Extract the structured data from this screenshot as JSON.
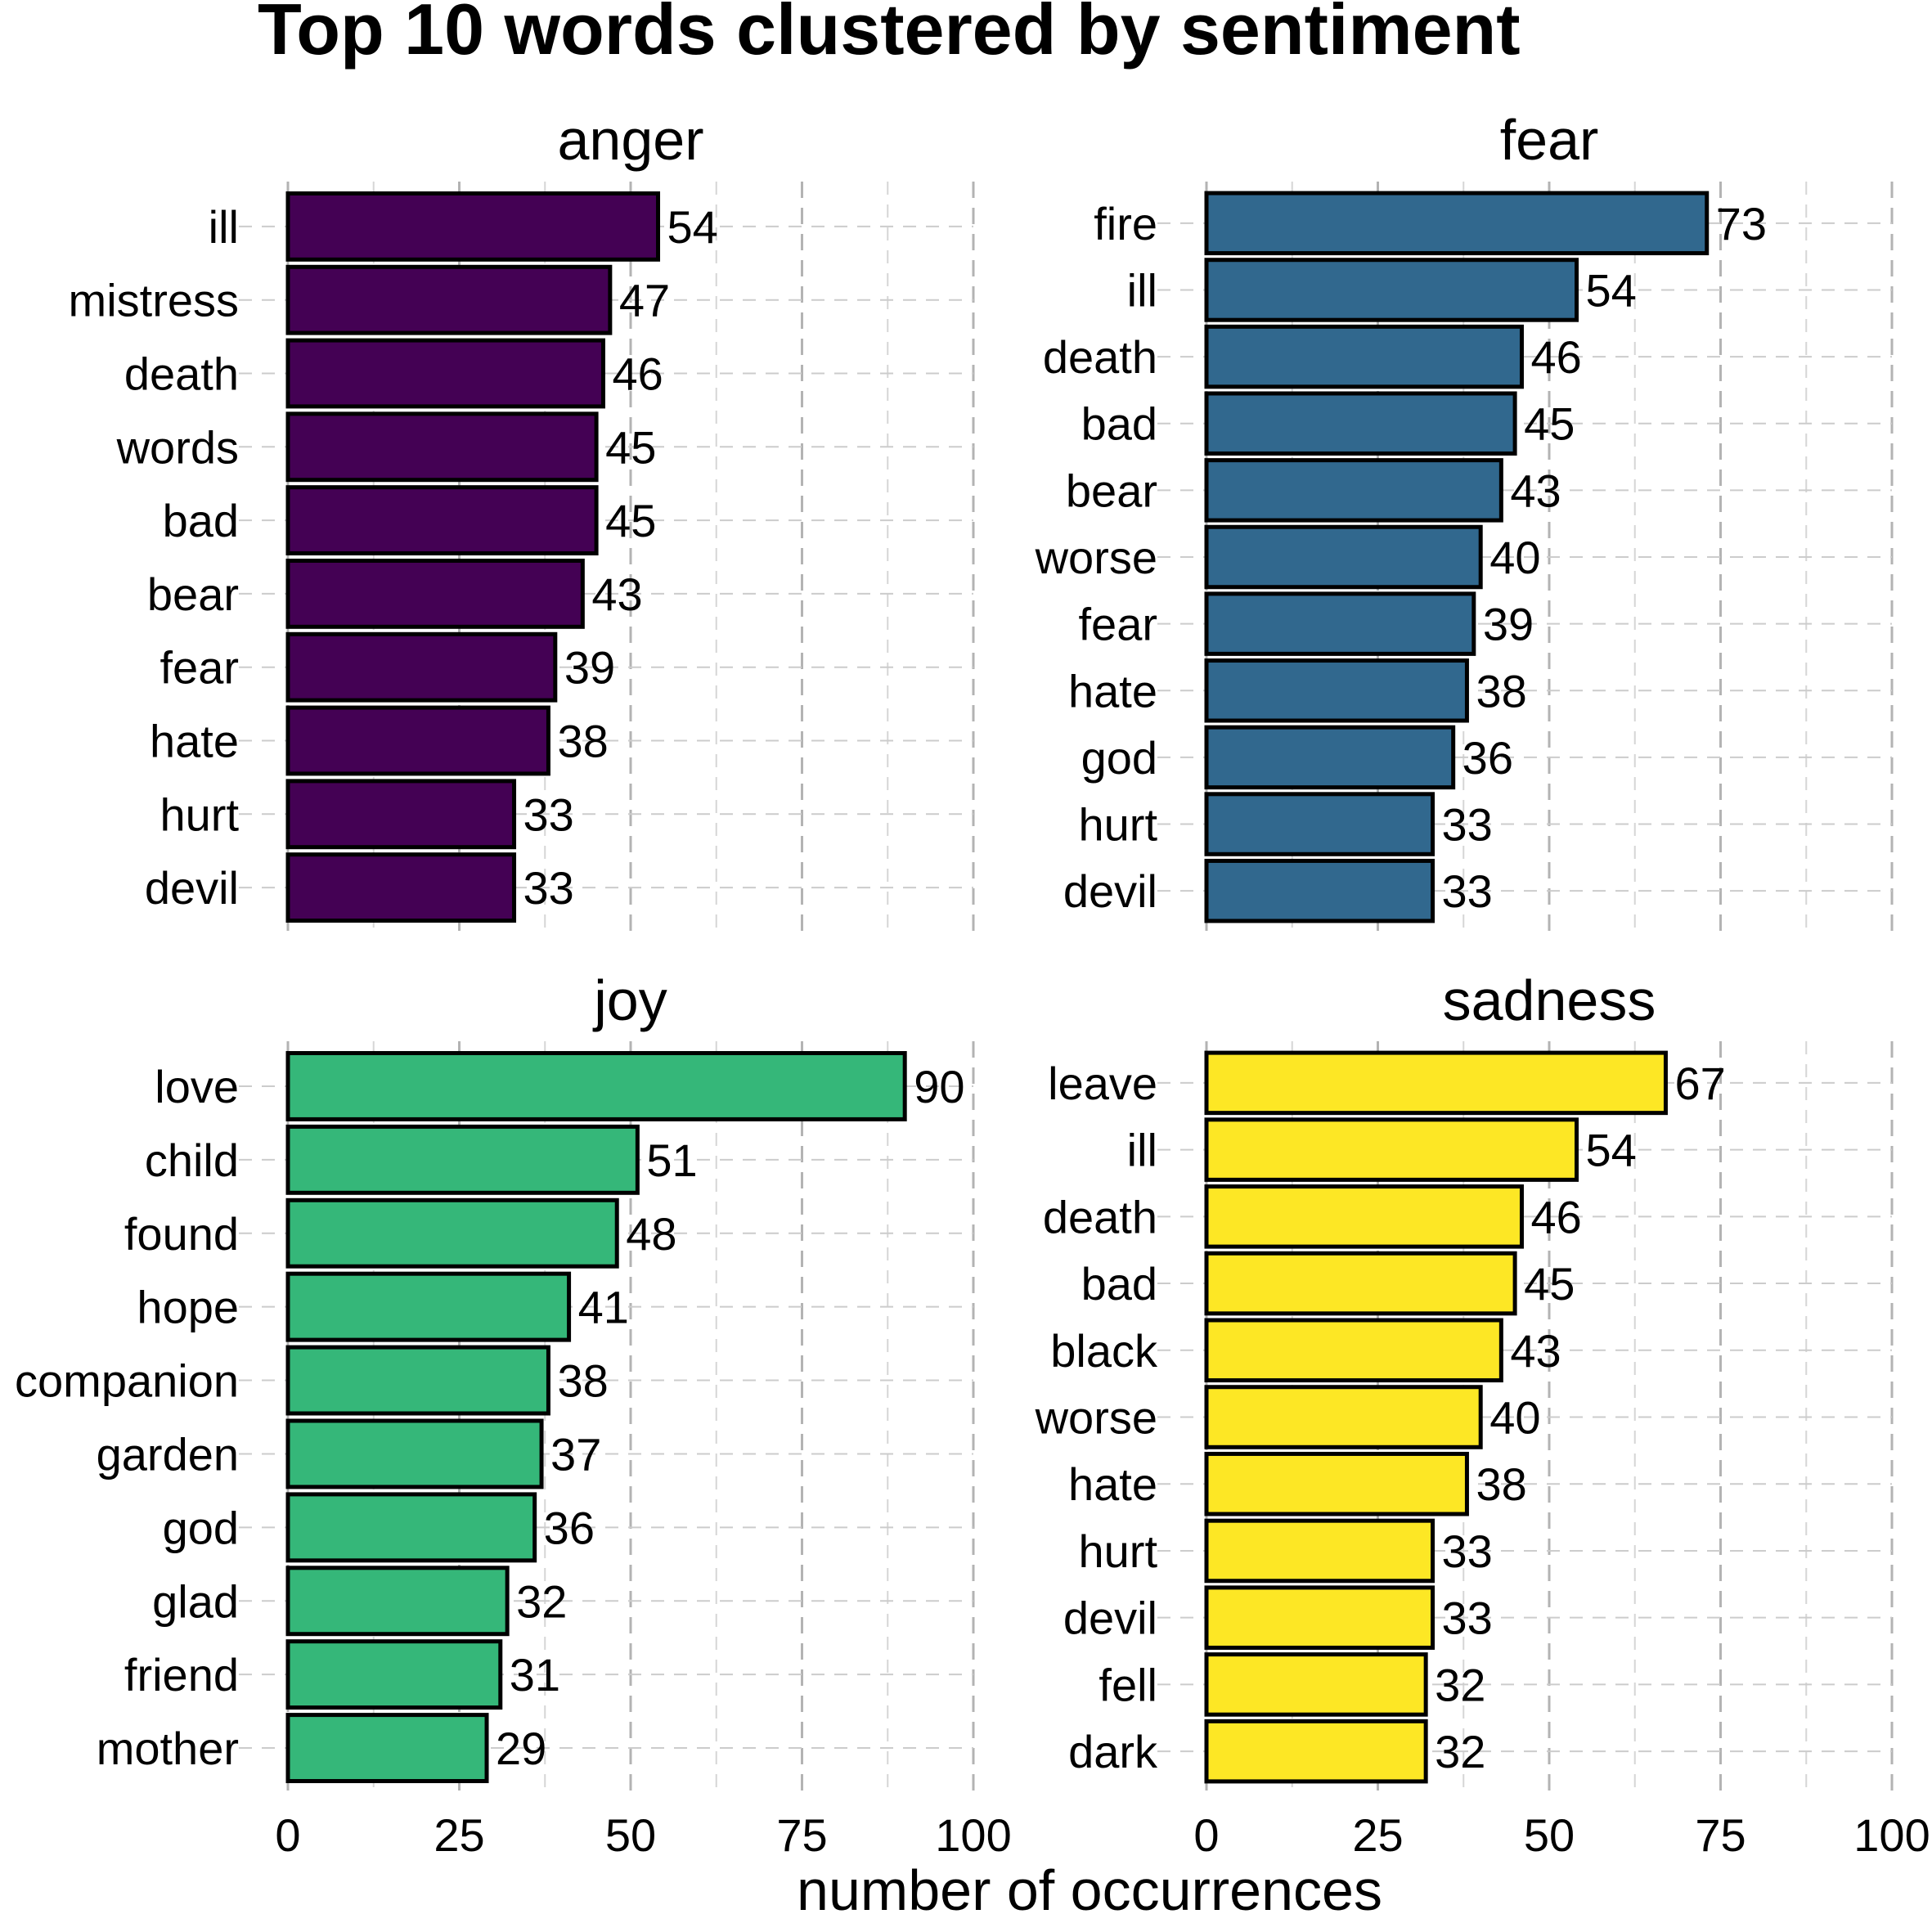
{
  "title": "Top 10 words clustered by sentiment",
  "x_axis_title": "number of occurrences",
  "chart_data": {
    "type": "bar",
    "orientation": "horizontal",
    "xlim": [
      0,
      100
    ],
    "x_ticks": [
      0,
      25,
      50,
      75,
      100
    ],
    "grid": true,
    "facets": [
      {
        "name": "anger",
        "color": "#440154",
        "categories": [
          "ill",
          "mistress",
          "death",
          "words",
          "bad",
          "bear",
          "fear",
          "hate",
          "hurt",
          "devil"
        ],
        "values": [
          54,
          47,
          46,
          45,
          45,
          43,
          39,
          38,
          33,
          33
        ]
      },
      {
        "name": "fear",
        "color": "#31688E",
        "categories": [
          "fire",
          "ill",
          "death",
          "bad",
          "bear",
          "worse",
          "fear",
          "hate",
          "god",
          "hurt",
          "devil"
        ],
        "values": [
          73,
          54,
          46,
          45,
          43,
          40,
          39,
          38,
          36,
          33,
          33
        ]
      },
      {
        "name": "joy",
        "color": "#35B779",
        "categories": [
          "love",
          "child",
          "found",
          "hope",
          "companion",
          "garden",
          "god",
          "glad",
          "friend",
          "mother"
        ],
        "values": [
          90,
          51,
          48,
          41,
          38,
          37,
          36,
          32,
          31,
          29
        ]
      },
      {
        "name": "sadness",
        "color": "#FDE725",
        "categories": [
          "leave",
          "ill",
          "death",
          "bad",
          "black",
          "worse",
          "hate",
          "hurt",
          "devil",
          "fell",
          "dark"
        ],
        "values": [
          67,
          54,
          46,
          45,
          43,
          40,
          38,
          33,
          33,
          32,
          32
        ]
      }
    ]
  }
}
